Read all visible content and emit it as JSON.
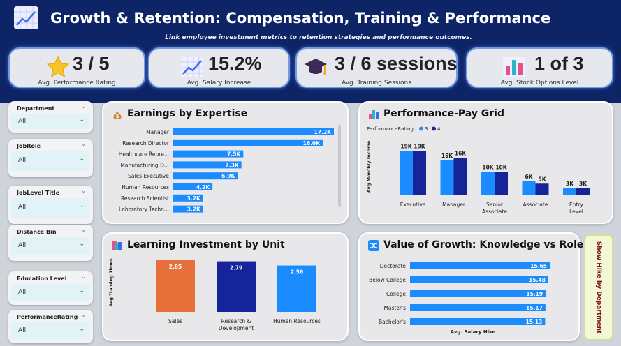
{
  "header": {
    "title": "Growth & Retention: Compensation, Training & Performance",
    "subtitle": "Link employee investment metrics to retention strategies and performance outcomes."
  },
  "kpis": [
    {
      "icon": "star-icon",
      "value": "3 / 5",
      "label": "Avg. Performance Rating"
    },
    {
      "icon": "line-chart-icon",
      "value": "15.2%",
      "label": "Avg. Salary Increase"
    },
    {
      "icon": "graduation-cap-icon",
      "value": "3 / 6 sessions",
      "label": "Avg. Training Sessions"
    },
    {
      "icon": "bar-chart-icon",
      "value": "1 of 3",
      "label": "Avg. Stock Options Level"
    }
  ],
  "slicers": [
    {
      "title": "Department",
      "value": "All"
    },
    {
      "title": "JobRole",
      "value": "All"
    },
    {
      "title": "JobLevel Title",
      "value": "All"
    },
    {
      "title": "Distance Bin",
      "value": "All"
    },
    {
      "title": "Education Level",
      "value": "All"
    },
    {
      "title": "PerformanceRating",
      "value": "All"
    }
  ],
  "toggle_label": "Show Hike by Department",
  "colors": {
    "header_bg": "#0d2466",
    "blue": "#1a8cff",
    "navy": "#16249a",
    "orange": "#e8703a"
  },
  "chart_data": [
    {
      "type": "bar",
      "orientation": "horizontal",
      "title": "Earnings by Expertise",
      "categories": [
        "Manager",
        "Research Director",
        "Healthcare Repre...",
        "Manufacturing D...",
        "Sales Executive",
        "Human Resources",
        "Research Scientist",
        "Laboratory Techn..."
      ],
      "values": [
        17.2,
        16.0,
        7.5,
        7.3,
        6.9,
        4.2,
        3.2,
        3.2
      ],
      "value_labels": [
        "17.2K",
        "16.0K",
        "7.5K",
        "7.3K",
        "6.9K",
        "4.2K",
        "3.2K",
        "3.2K"
      ],
      "xlim": [
        0,
        17.2
      ],
      "color": "#1a8cff"
    },
    {
      "type": "bar",
      "title": "Performance-Pay Grid",
      "legend_title": "PerformanceRating",
      "legend_position": "top-left",
      "ylabel": "Avg Monthly Income",
      "categories": [
        "Executive",
        "Manager",
        "Senior Associate",
        "Associate",
        "Entry Level"
      ],
      "series": [
        {
          "name": "3",
          "color": "#1a8cff",
          "values": [
            19,
            15,
            10,
            6,
            3
          ],
          "labels": [
            "19K",
            "15K",
            "10K",
            "6K",
            "3K"
          ]
        },
        {
          "name": "4",
          "color": "#16249a",
          "values": [
            19,
            16,
            10,
            5,
            3
          ],
          "labels": [
            "19K",
            "16K",
            "10K",
            "5K",
            "3K"
          ]
        }
      ],
      "ylim": [
        0,
        20
      ]
    },
    {
      "type": "bar",
      "title": "Learning Investment by Unit",
      "ylabel": "Avg Training Times",
      "categories": [
        "Sales",
        "Research & Development",
        "Human Resources"
      ],
      "values": [
        2.85,
        2.79,
        2.56
      ],
      "value_labels": [
        "2.85",
        "2.79",
        "2.56"
      ],
      "colors": [
        "#e8703a",
        "#16249a",
        "#1a8cff"
      ],
      "ylim": [
        0,
        2.85
      ]
    },
    {
      "type": "bar",
      "orientation": "horizontal",
      "title": "Value of Growth: Knowledge vs Role",
      "xlabel": "Avg. Salary Hike",
      "categories": [
        "Doctorate",
        "Below College",
        "College",
        "Master's",
        "Bachelor's"
      ],
      "values": [
        15.65,
        15.48,
        15.19,
        15.17,
        15.13
      ],
      "value_labels": [
        "15.65",
        "15.48",
        "15.19",
        "15.17",
        "15.13"
      ],
      "xlim": [
        0,
        15.65
      ],
      "color": "#1a8cff"
    }
  ]
}
